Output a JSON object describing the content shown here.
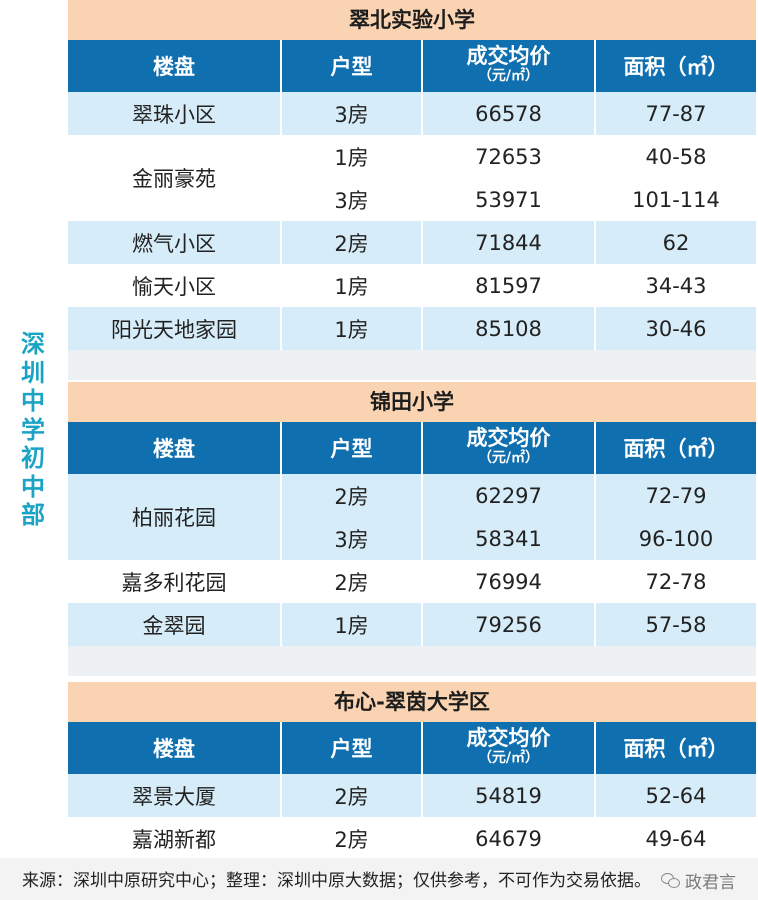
{
  "side_label": [
    "深",
    "圳",
    "中",
    "学",
    "初",
    "中",
    "部"
  ],
  "headers": {
    "name": "楼盘",
    "type": "户型",
    "price_line1": "成交均价",
    "price_line2": "（元/㎡）",
    "area": "面积（㎡）"
  },
  "sections": [
    {
      "title": "翠北实验小学",
      "groups": [
        {
          "name": "翠珠小区",
          "rows": [
            {
              "type": "3房",
              "price": "66578",
              "area": "77-87"
            }
          ]
        },
        {
          "name": "金丽豪苑",
          "rows": [
            {
              "type": "1房",
              "price": "72653",
              "area": "40-58"
            },
            {
              "type": "3房",
              "price": "53971",
              "area": "101-114"
            }
          ]
        },
        {
          "name": "燃气小区",
          "rows": [
            {
              "type": "2房",
              "price": "71844",
              "area": "62"
            }
          ]
        },
        {
          "name": "愉天小区",
          "rows": [
            {
              "type": "1房",
              "price": "81597",
              "area": "34-43"
            }
          ]
        },
        {
          "name": "阳光天地家园",
          "rows": [
            {
              "type": "1房",
              "price": "85108",
              "area": "30-46"
            }
          ]
        }
      ]
    },
    {
      "title": "锦田小学",
      "groups": [
        {
          "name": "柏丽花园",
          "rows": [
            {
              "type": "2房",
              "price": "62297",
              "area": "72-79"
            },
            {
              "type": "3房",
              "price": "58341",
              "area": "96-100"
            }
          ]
        },
        {
          "name": "嘉多利花园",
          "rows": [
            {
              "type": "2房",
              "price": "76994",
              "area": "72-78"
            }
          ]
        },
        {
          "name": "金翠园",
          "rows": [
            {
              "type": "1房",
              "price": "79256",
              "area": "57-58"
            }
          ]
        }
      ]
    },
    {
      "title": "布心-翠茵大学区",
      "groups": [
        {
          "name": "翠景大厦",
          "rows": [
            {
              "type": "2房",
              "price": "54819",
              "area": "52-64"
            }
          ]
        },
        {
          "name": "嘉湖新都",
          "rows": [
            {
              "type": "2房",
              "price": "64679",
              "area": "49-64"
            }
          ]
        }
      ]
    }
  ],
  "footer": {
    "source": "来源：深圳中原研究中心；整理：深圳中原大数据；仅供参考，不可作为交易依据。",
    "watermark": "政君言",
    "watermark_icon": "wechat-icon"
  },
  "colors": {
    "title_bg": "#fad4b2",
    "header_bg": "#0f6faf",
    "row_blue": "#d6ecf8",
    "side_label": "#1aa3c4"
  }
}
